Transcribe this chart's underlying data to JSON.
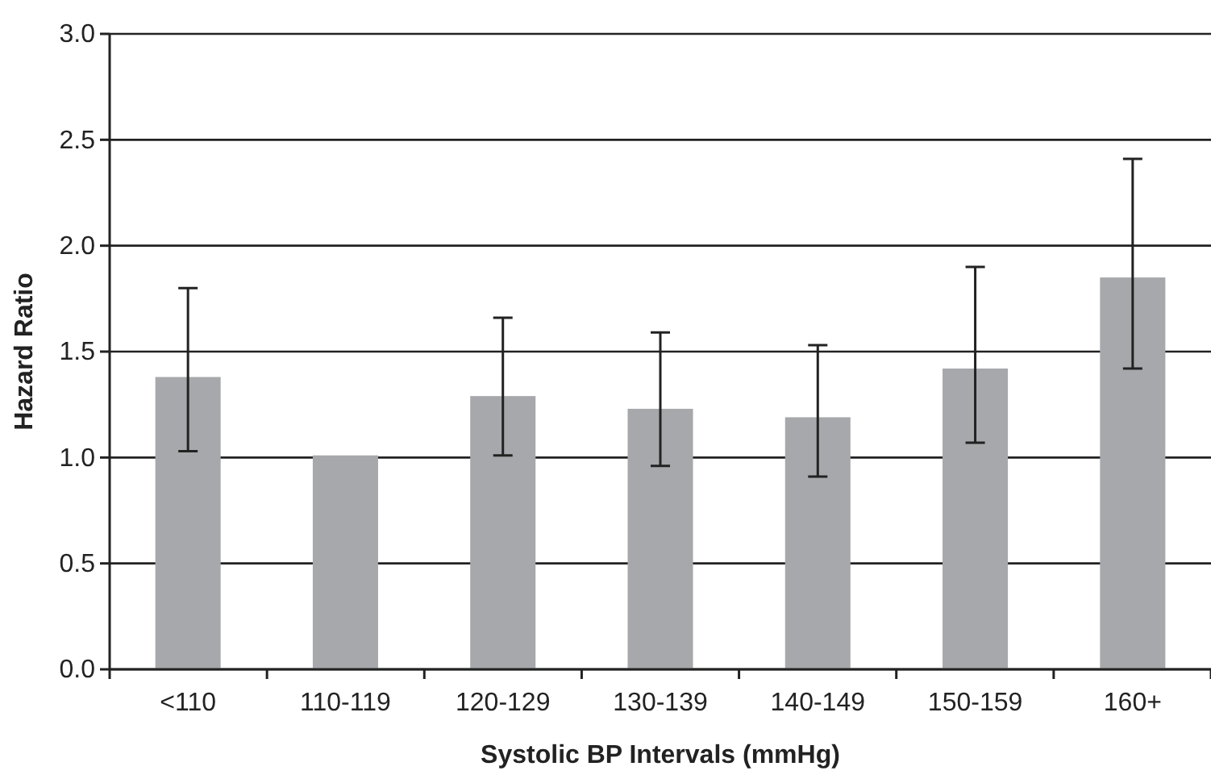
{
  "chart_data": {
    "type": "bar",
    "xlabel": "Systolic BP Intervals (mmHg)",
    "ylabel": "Hazard Ratio",
    "categories": [
      "<110",
      "110-119",
      "120-129",
      "130-139",
      "140-149",
      "150-159",
      "160+"
    ],
    "values": [
      1.38,
      1.01,
      1.29,
      1.23,
      1.19,
      1.42,
      1.85
    ],
    "errors": [
      [
        1.03,
        1.8
      ],
      null,
      [
        1.01,
        1.66
      ],
      [
        0.96,
        1.59
      ],
      [
        0.91,
        1.53
      ],
      [
        1.07,
        1.9
      ],
      [
        1.42,
        2.41
      ]
    ],
    "color": "#a7a8ab",
    "ylim": [
      0,
      3
    ],
    "yticks": [
      {
        "value": 0,
        "label": "0.0"
      },
      0.5,
      {
        "value": 1,
        "label": "1.0"
      },
      1.5,
      {
        "value": 2,
        "label": "2.0"
      },
      2.5,
      {
        "value": 3,
        "label": "3.0"
      }
    ],
    "grid": "y"
  }
}
